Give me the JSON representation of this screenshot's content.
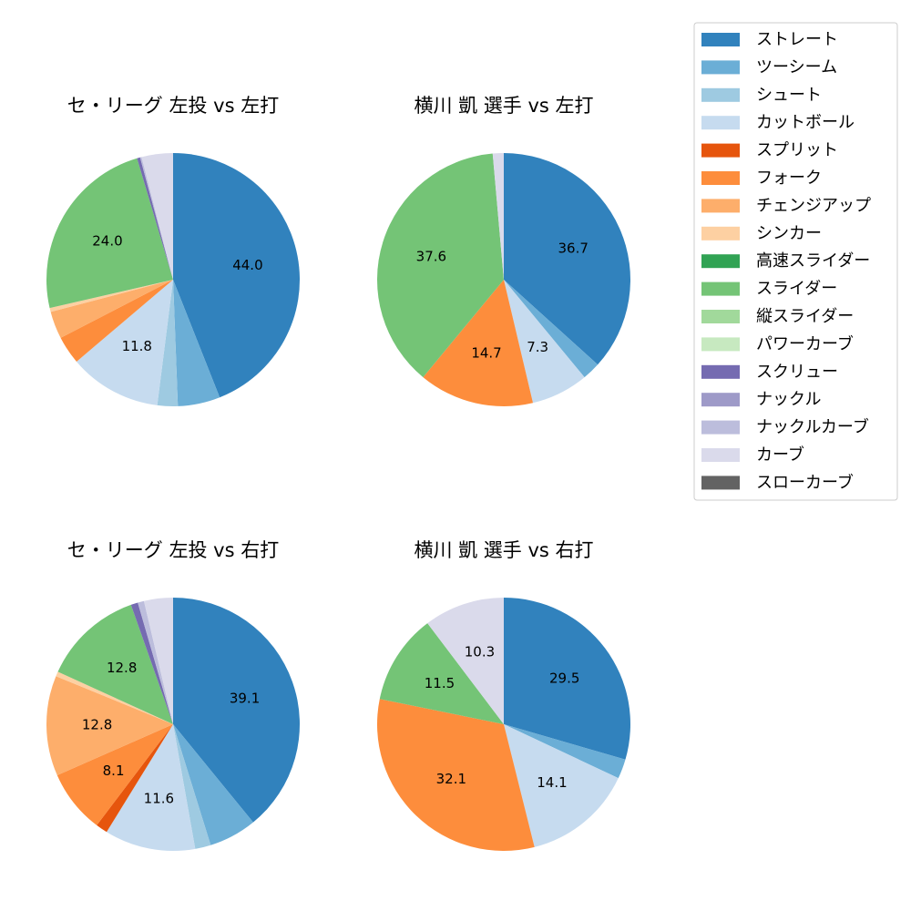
{
  "legend": {
    "items": [
      {
        "name": "ストレート",
        "color": "#3182bd"
      },
      {
        "name": "ツーシーム",
        "color": "#6baed6"
      },
      {
        "name": "シュート",
        "color": "#9ecae1"
      },
      {
        "name": "カットボール",
        "color": "#c6dbef"
      },
      {
        "name": "スプリット",
        "color": "#e6550d"
      },
      {
        "name": "フォーク",
        "color": "#fd8d3c"
      },
      {
        "name": "チェンジアップ",
        "color": "#fdae6b"
      },
      {
        "name": "シンカー",
        "color": "#fdd0a2"
      },
      {
        "name": "高速スライダー",
        "color": "#31a354"
      },
      {
        "name": "スライダー",
        "color": "#74c476"
      },
      {
        "name": "縦スライダー",
        "color": "#a1d99b"
      },
      {
        "name": "パワーカーブ",
        "color": "#c7e9c0"
      },
      {
        "name": "スクリュー",
        "color": "#756bb1"
      },
      {
        "name": "ナックル",
        "color": "#9e9ac8"
      },
      {
        "name": "ナックルカーブ",
        "color": "#bcbddc"
      },
      {
        "name": "カーブ",
        "color": "#dadaeb"
      },
      {
        "name": "スローカーブ",
        "color": "#636363"
      }
    ]
  },
  "chart_data": [
    {
      "type": "pie",
      "title": "セ・リーグ 左投 vs 左打",
      "categories": [
        "ストレート",
        "ツーシーム",
        "シュート",
        "カットボール",
        "フォーク",
        "チェンジアップ",
        "シンカー",
        "スライダー",
        "スクリュー",
        "ナックルカーブ",
        "カーブ"
      ],
      "values": [
        44.0,
        5.4,
        2.6,
        11.8,
        3.6,
        3.5,
        0.5,
        24.0,
        0.4,
        0.2,
        4.0
      ],
      "value_labels": [
        "44.0",
        null,
        null,
        "11.8",
        null,
        null,
        null,
        "24.0",
        null,
        null,
        null
      ]
    },
    {
      "type": "pie",
      "title": "横川 凱 選手 vs 左打",
      "categories": [
        "ストレート",
        "ツーシーム",
        "カットボール",
        "フォーク",
        "スライダー",
        "カーブ"
      ],
      "values": [
        36.7,
        2.3,
        7.3,
        14.7,
        37.6,
        1.4
      ],
      "value_labels": [
        "36.7",
        null,
        "7.3",
        "14.7",
        "37.6",
        null
      ]
    },
    {
      "type": "pie",
      "title": "セ・リーグ 左投 vs 右打",
      "categories": [
        "ストレート",
        "ツーシーム",
        "シュート",
        "カットボール",
        "スプリット",
        "フォーク",
        "チェンジアップ",
        "シンカー",
        "スライダー",
        "スクリュー",
        "ナックルカーブ",
        "カーブ"
      ],
      "values": [
        39.1,
        6.1,
        2.0,
        11.6,
        1.5,
        8.1,
        12.8,
        0.6,
        12.8,
        0.9,
        0.8,
        3.7
      ],
      "value_labels": [
        "39.1",
        null,
        null,
        "11.6",
        null,
        "8.1",
        "12.8",
        null,
        "12.8",
        null,
        null,
        null
      ]
    },
    {
      "type": "pie",
      "title": "横川 凱 選手 vs 右打",
      "categories": [
        "ストレート",
        "ツーシーム",
        "カットボール",
        "フォーク",
        "スライダー",
        "カーブ"
      ],
      "values": [
        29.5,
        2.5,
        14.1,
        32.1,
        11.5,
        10.3
      ],
      "value_labels": [
        "29.5",
        null,
        "14.1",
        "32.1",
        "11.5",
        "10.3"
      ]
    }
  ]
}
